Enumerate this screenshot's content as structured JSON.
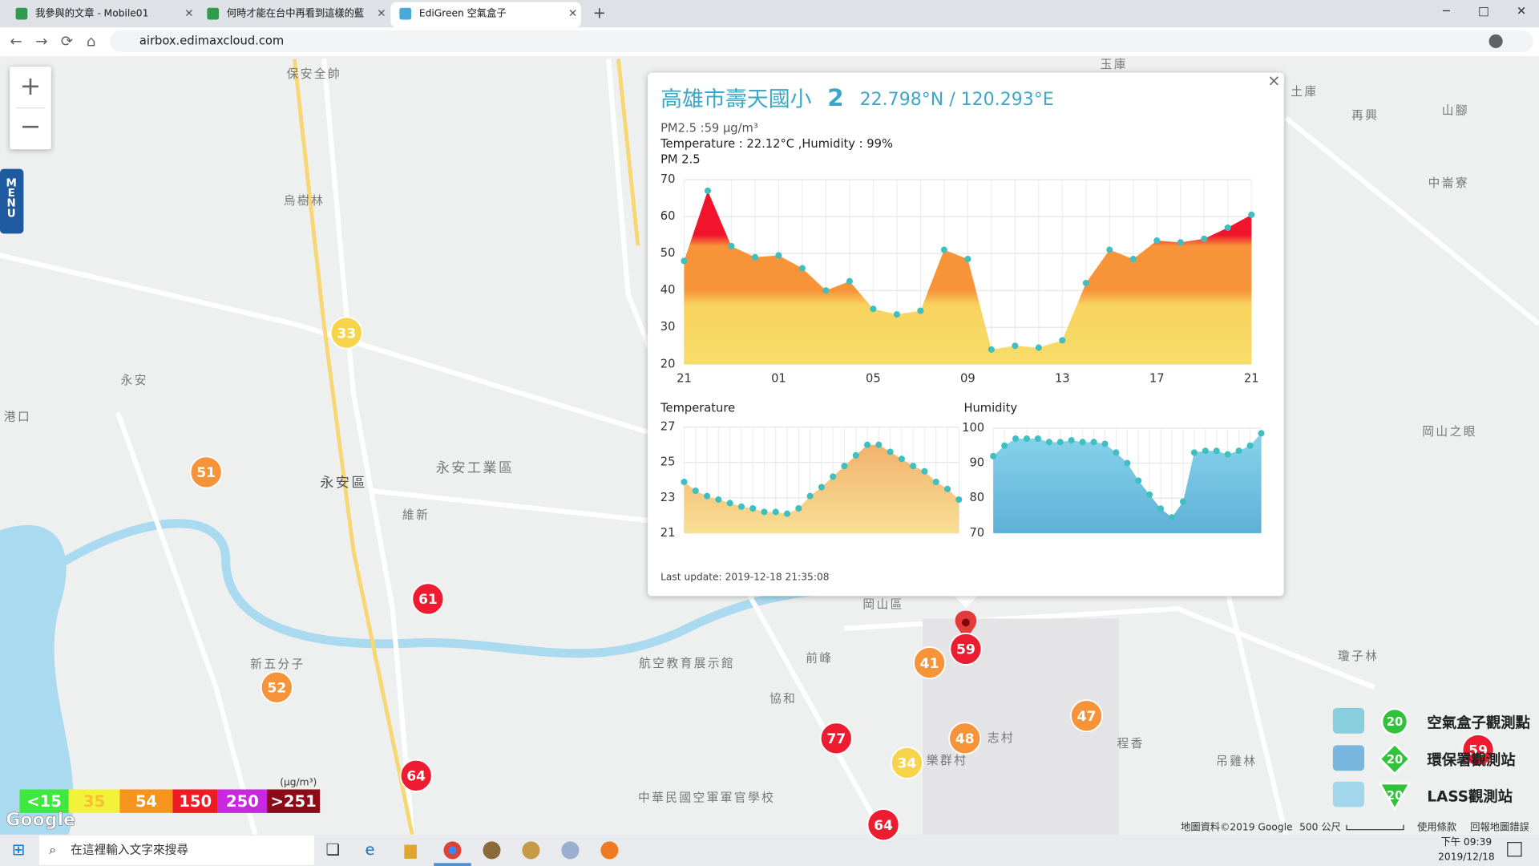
{
  "browser": {
    "tabs": [
      "我參與的文章 - Mobile01",
      "何時才能在台中再看到這樣的藍",
      "EdiGreen 空氣盒子"
    ],
    "new_tab": "+",
    "address": "airbox.edimaxcloud.com"
  },
  "map": {
    "zoom_in": "+",
    "zoom_out": "−",
    "menu": "MENU",
    "places": [
      "保安全帥",
      "烏樹林",
      "永安",
      "永安區",
      "永安工業區",
      "維新",
      "新五分子",
      "岡山區",
      "前峰",
      "協和",
      "航空教育展示館",
      "樂群村",
      "志村",
      "程香",
      "再興",
      "山腳",
      "中崙寮",
      "玉庫",
      "土庫",
      "瓊子林",
      "吊雞林",
      "中華民國空軍軍官學校",
      "港口",
      "岡山之眼"
    ],
    "markers": [
      {
        "value": 33,
        "color": "#f7d44c"
      },
      {
        "value": 51,
        "color": "#f7943a"
      },
      {
        "value": 61,
        "color": "#ee1c30"
      },
      {
        "value": 52,
        "color": "#f7943a"
      },
      {
        "value": 64,
        "color": "#ee1c30"
      },
      {
        "value": 77,
        "color": "#ee1c30"
      },
      {
        "value": 41,
        "color": "#f7943a"
      },
      {
        "value": 59,
        "color": "#ee1c30"
      },
      {
        "value": 48,
        "color": "#f7943a"
      },
      {
        "value": 34,
        "color": "#f7d44c"
      },
      {
        "value": 47,
        "color": "#f7943a"
      },
      {
        "value": 64,
        "color": "#ee1c30"
      },
      {
        "value": 59,
        "color": "#ee1c30"
      }
    ],
    "unit": "(μg/m³)",
    "aqi_levels": [
      {
        "label": "<15",
        "color": "#3ee83e"
      },
      {
        "label": "35",
        "color": "#f2f23a"
      },
      {
        "label": "54",
        "color": "#f7941d"
      },
      {
        "label": "150",
        "color": "#ee1c25"
      },
      {
        "label": "250",
        "color": "#c928e0"
      },
      {
        "label": ">251",
        "color": "#8b0b17"
      }
    ],
    "station_legend": [
      {
        "count": 20,
        "label": "空氣盒子觀測點"
      },
      {
        "count": 20,
        "label": "環保署觀測站"
      },
      {
        "count": 20,
        "label": "LASS觀測站"
      }
    ],
    "footer": [
      "地圖資料©2019 Google",
      "500 公尺",
      "使用條款",
      "回報地圖錯誤"
    ],
    "google": "Google"
  },
  "popup": {
    "close": "×",
    "name": "高雄市壽天國小",
    "name_suffix": "2",
    "coords": "22.798°N / 120.293°E",
    "lines": [
      "PM2.5 :59 μg/m³",
      "Temperature : 22.12°C ,Humidity : 99%"
    ],
    "last_update": "Last update: 2019-12-18 21:35:08"
  },
  "chart_data": [
    {
      "type": "area",
      "title": "PM 2.5",
      "categories": [
        "21",
        null,
        null,
        null,
        "01",
        null,
        null,
        null,
        "05",
        null,
        null,
        null,
        "09",
        null,
        null,
        null,
        "13",
        null,
        null,
        null,
        "17",
        null,
        null,
        null,
        "21"
      ],
      "values": [
        48,
        67,
        52,
        49,
        49.5,
        46,
        40,
        42.5,
        35,
        33.5,
        34.5,
        51,
        48.5,
        24,
        25,
        24.5,
        26.5,
        42,
        51,
        48.5,
        53.5,
        53,
        54,
        57,
        60.5
      ],
      "color": "#3fbfbf",
      "ylim": [
        20,
        70
      ],
      "yticks": [
        20,
        30,
        40,
        50,
        60,
        70
      ],
      "grid": true
    },
    {
      "type": "area",
      "title": "Temperature",
      "values": [
        23.9,
        23.4,
        23.1,
        22.9,
        22.7,
        22.5,
        22.4,
        22.2,
        22.2,
        22.1,
        22.4,
        23.1,
        23.6,
        24.2,
        24.8,
        25.4,
        26,
        26,
        25.6,
        25.2,
        24.8,
        24.5,
        23.9,
        23.5,
        22.9
      ],
      "color": "#3fbfbf",
      "ylim": [
        21,
        27
      ],
      "yticks": [
        21,
        23,
        25,
        27
      ],
      "grid": true
    },
    {
      "type": "area",
      "title": "Humidity",
      "values": [
        92,
        95,
        97,
        97,
        97,
        96,
        96,
        96.5,
        96,
        96,
        95.5,
        93,
        90,
        85,
        81,
        77,
        74.5,
        79,
        93,
        93.5,
        93.5,
        92.5,
        93.5,
        95,
        98.5
      ],
      "color": "#3fbfbf",
      "ylim": [
        70,
        100
      ],
      "yticks": [
        70,
        80,
        90,
        100
      ],
      "grid": true
    }
  ],
  "taskbar": {
    "search": "在這裡輸入文字來搜尋",
    "time": "下午 09:39",
    "date": "2019/12/18"
  }
}
